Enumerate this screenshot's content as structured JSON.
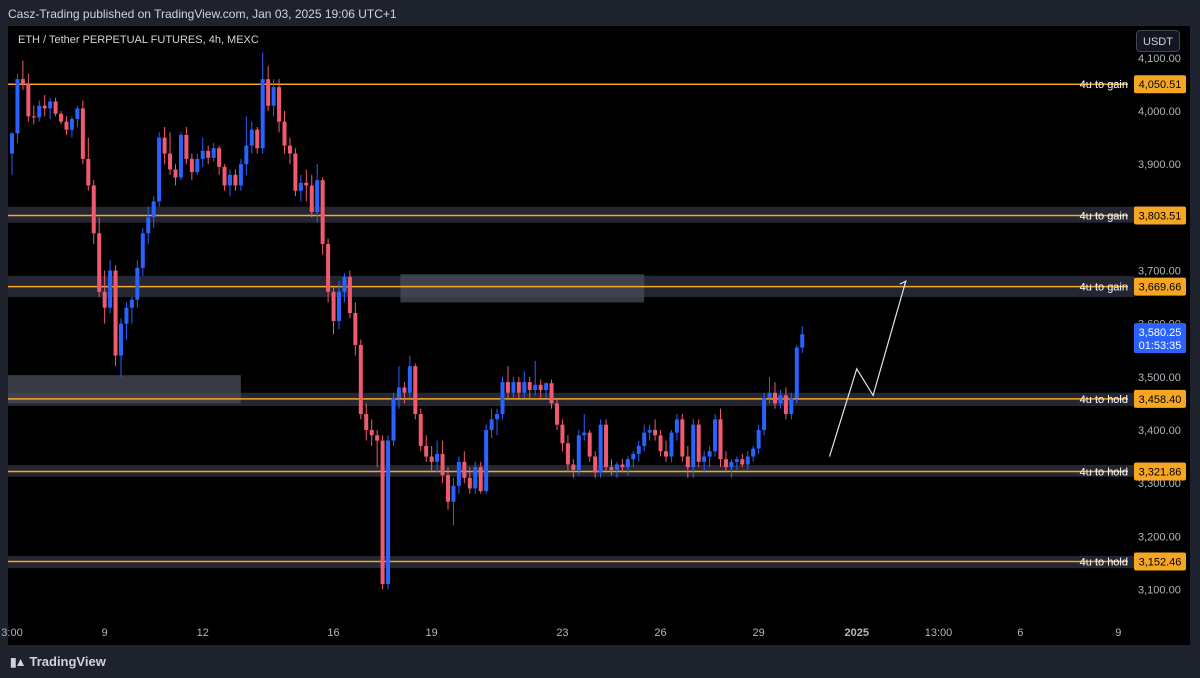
{
  "header": {
    "published": "Casz-Trading published on TradingView.com, Jan 03, 2025 19:06 UTC+1"
  },
  "symbol_label": "ETH / Tether PERPETUAL FUTURES, 4h, MEXC",
  "currency_button": "USDT",
  "footer": {
    "brand": "TradingView",
    "brand_icon": "tradingview-logo-icon"
  },
  "colors": {
    "up": "#2962ff",
    "down": "#f05a6e",
    "level": "#f5a623",
    "zone": "#2a2e39",
    "zone_light": "#4a4e59",
    "last_price": "#2962ff"
  },
  "chart_data": {
    "type": "candlestick",
    "title": "",
    "timeframe": "4h",
    "y_axis": {
      "ylim": [
        3050,
        4160
      ],
      "ticks": [
        3100,
        3200,
        3300,
        3400,
        3500,
        3600,
        3700,
        3800,
        3900,
        4000,
        4100
      ],
      "tick_labels": [
        "3,100.00",
        "3,200.00",
        "3,300.00",
        "3,400.00",
        "3,500.00",
        "3,600.00",
        "3,700.00",
        "3,800.00",
        "3,900.00",
        "4,000.00",
        "4,100.00"
      ]
    },
    "x_axis": {
      "ticks": [
        {
          "label": "3:00",
          "index": 0
        },
        {
          "label": "9",
          "index": 17
        },
        {
          "label": "12",
          "index": 35
        },
        {
          "label": "16",
          "index": 59
        },
        {
          "label": "19",
          "index": 77
        },
        {
          "label": "23",
          "index": 101
        },
        {
          "label": "26",
          "index": 119
        },
        {
          "label": "29",
          "index": 137
        },
        {
          "label": "2025",
          "index": 155
        },
        {
          "label": "13:00",
          "index": 170
        },
        {
          "label": "6",
          "index": 185
        },
        {
          "label": "9",
          "index": 203
        }
      ]
    },
    "levels": [
      {
        "price": 4050.51,
        "price_label": "4,050.51",
        "text": "4u to gain"
      },
      {
        "price": 3803.51,
        "price_label": "3,803.51",
        "text": "4u to gain"
      },
      {
        "price": 3669.66,
        "price_label": "3,669.66",
        "text": "4u to gain"
      },
      {
        "price": 3458.4,
        "price_label": "3,458.40",
        "text": "4u to hold"
      },
      {
        "price": 3321.86,
        "price_label": "3,321.86",
        "text": "4u to hold"
      },
      {
        "price": 3152.46,
        "price_label": "3,152.46",
        "text": "4u to hold"
      }
    ],
    "zones": [
      {
        "x_from": 0,
        "x_to": 206,
        "y_from": 3790,
        "y_to": 3820
      },
      {
        "x_from": 0,
        "x_to": 206,
        "y_from": 3650,
        "y_to": 3690
      },
      {
        "x_from": 0,
        "x_to": 206,
        "y_from": 3445,
        "y_to": 3470
      },
      {
        "x_from": 0,
        "x_to": 206,
        "y_from": 3312,
        "y_to": 3334
      },
      {
        "x_from": 0,
        "x_to": 206,
        "y_from": 3140,
        "y_to": 3163
      },
      {
        "x_from": 0,
        "x_to": 42,
        "y_from": 3450,
        "y_to": 3503
      },
      {
        "x_from": 72,
        "x_to": 116,
        "y_from": 3640,
        "y_to": 3693
      }
    ],
    "projection": [
      {
        "i": 150,
        "p": 3350
      },
      {
        "i": 155,
        "p": 3515
      },
      {
        "i": 158,
        "p": 3465
      },
      {
        "i": 164,
        "p": 3680
      }
    ],
    "last_price": {
      "value": 3580.25,
      "label": "3,580.25",
      "countdown": "01:53:35"
    },
    "candles": [
      {
        "o": 3920,
        "h": 3960,
        "l": 3880,
        "c": 3958
      },
      {
        "o": 3958,
        "h": 4070,
        "l": 3940,
        "c": 4060
      },
      {
        "o": 4060,
        "h": 4095,
        "l": 4040,
        "c": 4050
      },
      {
        "o": 4050,
        "h": 4070,
        "l": 3980,
        "c": 3990
      },
      {
        "o": 3990,
        "h": 4010,
        "l": 3975,
        "c": 3988
      },
      {
        "o": 3988,
        "h": 4020,
        "l": 3980,
        "c": 4010
      },
      {
        "o": 4010,
        "h": 4030,
        "l": 3990,
        "c": 4005
      },
      {
        "o": 4005,
        "h": 4025,
        "l": 3985,
        "c": 4018
      },
      {
        "o": 4018,
        "h": 4025,
        "l": 3990,
        "c": 3995
      },
      {
        "o": 3995,
        "h": 4000,
        "l": 3975,
        "c": 3980
      },
      {
        "o": 3980,
        "h": 3990,
        "l": 3955,
        "c": 3965
      },
      {
        "o": 3965,
        "h": 3990,
        "l": 3950,
        "c": 3985
      },
      {
        "o": 3985,
        "h": 4010,
        "l": 3970,
        "c": 4005
      },
      {
        "o": 4005,
        "h": 4020,
        "l": 3900,
        "c": 3910
      },
      {
        "o": 3910,
        "h": 3950,
        "l": 3850,
        "c": 3860
      },
      {
        "o": 3860,
        "h": 3870,
        "l": 3750,
        "c": 3770
      },
      {
        "o": 3770,
        "h": 3800,
        "l": 3650,
        "c": 3660
      },
      {
        "o": 3660,
        "h": 3700,
        "l": 3600,
        "c": 3630
      },
      {
        "o": 3630,
        "h": 3720,
        "l": 3620,
        "c": 3700
      },
      {
        "o": 3700,
        "h": 3710,
        "l": 3520,
        "c": 3540
      },
      {
        "o": 3540,
        "h": 3610,
        "l": 3500,
        "c": 3600
      },
      {
        "o": 3600,
        "h": 3640,
        "l": 3570,
        "c": 3630
      },
      {
        "o": 3630,
        "h": 3650,
        "l": 3600,
        "c": 3645
      },
      {
        "o": 3645,
        "h": 3720,
        "l": 3630,
        "c": 3705
      },
      {
        "o": 3705,
        "h": 3780,
        "l": 3690,
        "c": 3770
      },
      {
        "o": 3770,
        "h": 3820,
        "l": 3750,
        "c": 3800
      },
      {
        "o": 3800,
        "h": 3840,
        "l": 3780,
        "c": 3830
      },
      {
        "o": 3830,
        "h": 3960,
        "l": 3820,
        "c": 3950
      },
      {
        "o": 3950,
        "h": 3970,
        "l": 3900,
        "c": 3920
      },
      {
        "o": 3920,
        "h": 3960,
        "l": 3880,
        "c": 3890
      },
      {
        "o": 3890,
        "h": 3900,
        "l": 3860,
        "c": 3875
      },
      {
        "o": 3875,
        "h": 3960,
        "l": 3870,
        "c": 3955
      },
      {
        "o": 3955,
        "h": 3970,
        "l": 3900,
        "c": 3910
      },
      {
        "o": 3910,
        "h": 3920,
        "l": 3870,
        "c": 3885
      },
      {
        "o": 3885,
        "h": 3920,
        "l": 3880,
        "c": 3910
      },
      {
        "o": 3910,
        "h": 3950,
        "l": 3895,
        "c": 3925
      },
      {
        "o": 3925,
        "h": 3935,
        "l": 3900,
        "c": 3912
      },
      {
        "o": 3912,
        "h": 3940,
        "l": 3905,
        "c": 3930
      },
      {
        "o": 3930,
        "h": 3935,
        "l": 3880,
        "c": 3895
      },
      {
        "o": 3895,
        "h": 3900,
        "l": 3850,
        "c": 3860
      },
      {
        "o": 3860,
        "h": 3890,
        "l": 3840,
        "c": 3880
      },
      {
        "o": 3880,
        "h": 3890,
        "l": 3850,
        "c": 3860
      },
      {
        "o": 3860,
        "h": 3910,
        "l": 3850,
        "c": 3900
      },
      {
        "o": 3900,
        "h": 3990,
        "l": 3880,
        "c": 3935
      },
      {
        "o": 3935,
        "h": 3980,
        "l": 3920,
        "c": 3965
      },
      {
        "o": 3965,
        "h": 3970,
        "l": 3920,
        "c": 3930
      },
      {
        "o": 3930,
        "h": 4110,
        "l": 3920,
        "c": 4060
      },
      {
        "o": 4060,
        "h": 4085,
        "l": 4000,
        "c": 4010
      },
      {
        "o": 4010,
        "h": 4060,
        "l": 3990,
        "c": 4045
      },
      {
        "o": 4045,
        "h": 4060,
        "l": 3960,
        "c": 3980
      },
      {
        "o": 3980,
        "h": 4000,
        "l": 3920,
        "c": 3935
      },
      {
        "o": 3935,
        "h": 3950,
        "l": 3900,
        "c": 3920
      },
      {
        "o": 3920,
        "h": 3930,
        "l": 3840,
        "c": 3850
      },
      {
        "o": 3850,
        "h": 3880,
        "l": 3830,
        "c": 3865
      },
      {
        "o": 3865,
        "h": 3890,
        "l": 3830,
        "c": 3860
      },
      {
        "o": 3860,
        "h": 3880,
        "l": 3800,
        "c": 3810
      },
      {
        "o": 3810,
        "h": 3900,
        "l": 3790,
        "c": 3870
      },
      {
        "o": 3870,
        "h": 3875,
        "l": 3730,
        "c": 3750
      },
      {
        "o": 3750,
        "h": 3760,
        "l": 3640,
        "c": 3660
      },
      {
        "o": 3660,
        "h": 3670,
        "l": 3580,
        "c": 3605
      },
      {
        "o": 3605,
        "h": 3680,
        "l": 3590,
        "c": 3660
      },
      {
        "o": 3660,
        "h": 3695,
        "l": 3640,
        "c": 3688
      },
      {
        "o": 3688,
        "h": 3700,
        "l": 3610,
        "c": 3620
      },
      {
        "o": 3620,
        "h": 3640,
        "l": 3540,
        "c": 3560
      },
      {
        "o": 3560,
        "h": 3570,
        "l": 3420,
        "c": 3430
      },
      {
        "o": 3430,
        "h": 3450,
        "l": 3380,
        "c": 3400
      },
      {
        "o": 3400,
        "h": 3420,
        "l": 3370,
        "c": 3390
      },
      {
        "o": 3390,
        "h": 3400,
        "l": 3330,
        "c": 3380
      },
      {
        "o": 3380,
        "h": 3390,
        "l": 3100,
        "c": 3110
      },
      {
        "o": 3110,
        "h": 3390,
        "l": 3100,
        "c": 3380
      },
      {
        "o": 3380,
        "h": 3470,
        "l": 3370,
        "c": 3460
      },
      {
        "o": 3460,
        "h": 3520,
        "l": 3440,
        "c": 3480
      },
      {
        "o": 3480,
        "h": 3490,
        "l": 3450,
        "c": 3470
      },
      {
        "o": 3470,
        "h": 3540,
        "l": 3460,
        "c": 3520
      },
      {
        "o": 3520,
        "h": 3525,
        "l": 3420,
        "c": 3430
      },
      {
        "o": 3430,
        "h": 3440,
        "l": 3360,
        "c": 3370
      },
      {
        "o": 3370,
        "h": 3390,
        "l": 3340,
        "c": 3350
      },
      {
        "o": 3350,
        "h": 3370,
        "l": 3320,
        "c": 3340
      },
      {
        "o": 3340,
        "h": 3380,
        "l": 3320,
        "c": 3355
      },
      {
        "o": 3355,
        "h": 3380,
        "l": 3300,
        "c": 3315
      },
      {
        "o": 3315,
        "h": 3330,
        "l": 3250,
        "c": 3265
      },
      {
        "o": 3265,
        "h": 3310,
        "l": 3220,
        "c": 3295
      },
      {
        "o": 3295,
        "h": 3350,
        "l": 3280,
        "c": 3340
      },
      {
        "o": 3340,
        "h": 3360,
        "l": 3300,
        "c": 3310
      },
      {
        "o": 3310,
        "h": 3330,
        "l": 3280,
        "c": 3290
      },
      {
        "o": 3290,
        "h": 3340,
        "l": 3280,
        "c": 3330
      },
      {
        "o": 3330,
        "h": 3340,
        "l": 3280,
        "c": 3285
      },
      {
        "o": 3285,
        "h": 3410,
        "l": 3280,
        "c": 3400
      },
      {
        "o": 3400,
        "h": 3440,
        "l": 3385,
        "c": 3420
      },
      {
        "o": 3420,
        "h": 3440,
        "l": 3390,
        "c": 3430
      },
      {
        "o": 3430,
        "h": 3500,
        "l": 3420,
        "c": 3490
      },
      {
        "o": 3490,
        "h": 3520,
        "l": 3460,
        "c": 3470
      },
      {
        "o": 3470,
        "h": 3500,
        "l": 3460,
        "c": 3490
      },
      {
        "o": 3490,
        "h": 3500,
        "l": 3460,
        "c": 3470
      },
      {
        "o": 3470,
        "h": 3510,
        "l": 3460,
        "c": 3490
      },
      {
        "o": 3490,
        "h": 3500,
        "l": 3460,
        "c": 3475
      },
      {
        "o": 3475,
        "h": 3530,
        "l": 3465,
        "c": 3485
      },
      {
        "o": 3485,
        "h": 3495,
        "l": 3460,
        "c": 3475
      },
      {
        "o": 3475,
        "h": 3490,
        "l": 3460,
        "c": 3488
      },
      {
        "o": 3488,
        "h": 3495,
        "l": 3440,
        "c": 3450
      },
      {
        "o": 3450,
        "h": 3460,
        "l": 3400,
        "c": 3410
      },
      {
        "o": 3410,
        "h": 3420,
        "l": 3360,
        "c": 3375
      },
      {
        "o": 3375,
        "h": 3390,
        "l": 3320,
        "c": 3335
      },
      {
        "o": 3335,
        "h": 3345,
        "l": 3310,
        "c": 3325
      },
      {
        "o": 3325,
        "h": 3400,
        "l": 3315,
        "c": 3390
      },
      {
        "o": 3390,
        "h": 3430,
        "l": 3380,
        "c": 3395
      },
      {
        "o": 3395,
        "h": 3400,
        "l": 3340,
        "c": 3350
      },
      {
        "o": 3350,
        "h": 3360,
        "l": 3310,
        "c": 3320
      },
      {
        "o": 3320,
        "h": 3420,
        "l": 3310,
        "c": 3410
      },
      {
        "o": 3410,
        "h": 3420,
        "l": 3320,
        "c": 3330
      },
      {
        "o": 3330,
        "h": 3345,
        "l": 3315,
        "c": 3325
      },
      {
        "o": 3325,
        "h": 3340,
        "l": 3310,
        "c": 3335
      },
      {
        "o": 3335,
        "h": 3345,
        "l": 3320,
        "c": 3330
      },
      {
        "o": 3330,
        "h": 3350,
        "l": 3315,
        "c": 3345
      },
      {
        "o": 3345,
        "h": 3360,
        "l": 3330,
        "c": 3355
      },
      {
        "o": 3355,
        "h": 3380,
        "l": 3340,
        "c": 3370
      },
      {
        "o": 3370,
        "h": 3410,
        "l": 3360,
        "c": 3395
      },
      {
        "o": 3395,
        "h": 3410,
        "l": 3380,
        "c": 3400
      },
      {
        "o": 3400,
        "h": 3420,
        "l": 3380,
        "c": 3390
      },
      {
        "o": 3390,
        "h": 3400,
        "l": 3350,
        "c": 3360
      },
      {
        "o": 3360,
        "h": 3380,
        "l": 3340,
        "c": 3350
      },
      {
        "o": 3350,
        "h": 3400,
        "l": 3340,
        "c": 3395
      },
      {
        "o": 3395,
        "h": 3430,
        "l": 3380,
        "c": 3420
      },
      {
        "o": 3420,
        "h": 3430,
        "l": 3340,
        "c": 3350
      },
      {
        "o": 3350,
        "h": 3370,
        "l": 3310,
        "c": 3330
      },
      {
        "o": 3330,
        "h": 3420,
        "l": 3310,
        "c": 3410
      },
      {
        "o": 3410,
        "h": 3420,
        "l": 3330,
        "c": 3340
      },
      {
        "o": 3340,
        "h": 3360,
        "l": 3320,
        "c": 3350
      },
      {
        "o": 3350,
        "h": 3370,
        "l": 3330,
        "c": 3360
      },
      {
        "o": 3360,
        "h": 3430,
        "l": 3350,
        "c": 3420
      },
      {
        "o": 3420,
        "h": 3440,
        "l": 3330,
        "c": 3345
      },
      {
        "o": 3345,
        "h": 3360,
        "l": 3320,
        "c": 3330
      },
      {
        "o": 3330,
        "h": 3345,
        "l": 3310,
        "c": 3340
      },
      {
        "o": 3340,
        "h": 3350,
        "l": 3325,
        "c": 3345
      },
      {
        "o": 3345,
        "h": 3355,
        "l": 3330,
        "c": 3335
      },
      {
        "o": 3335,
        "h": 3360,
        "l": 3325,
        "c": 3350
      },
      {
        "o": 3350,
        "h": 3370,
        "l": 3340,
        "c": 3365
      },
      {
        "o": 3365,
        "h": 3410,
        "l": 3355,
        "c": 3400
      },
      {
        "o": 3400,
        "h": 3470,
        "l": 3390,
        "c": 3460
      },
      {
        "o": 3460,
        "h": 3500,
        "l": 3450,
        "c": 3470
      },
      {
        "o": 3470,
        "h": 3490,
        "l": 3440,
        "c": 3450
      },
      {
        "o": 3450,
        "h": 3475,
        "l": 3440,
        "c": 3465
      },
      {
        "o": 3465,
        "h": 3480,
        "l": 3420,
        "c": 3430
      },
      {
        "o": 3430,
        "h": 3470,
        "l": 3420,
        "c": 3460
      },
      {
        "o": 3460,
        "h": 3560,
        "l": 3450,
        "c": 3555
      },
      {
        "o": 3555,
        "h": 3595,
        "l": 3545,
        "c": 3580
      }
    ]
  }
}
